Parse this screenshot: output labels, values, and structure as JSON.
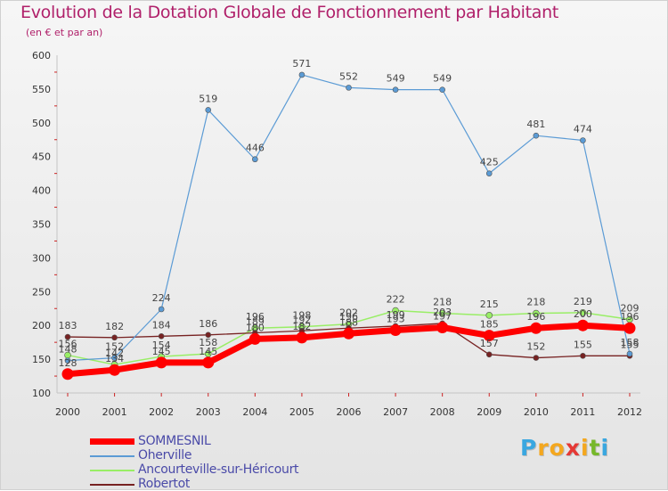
{
  "chart_data": {
    "type": "line",
    "title": "Evolution de la Dotation Globale de Fonctionnement par Habitant",
    "subtitle": "(en € et par an)",
    "x": [
      "2000",
      "2001",
      "2002",
      "2003",
      "2004",
      "2005",
      "2006",
      "2007",
      "2008",
      "2009",
      "2010",
      "2011",
      "2012"
    ],
    "ylim": [
      100,
      600
    ],
    "yticks": [
      100,
      150,
      200,
      250,
      300,
      350,
      400,
      450,
      500,
      550,
      600
    ],
    "grid": false,
    "legend_position": "bottom-left",
    "series": [
      {
        "name": "SOMMESNIL",
        "color": "#ff0000",
        "values": [
          128,
          134,
          145,
          145,
          180,
          182,
          188,
          193,
          197,
          185,
          196,
          200,
          196
        ],
        "labels": [
          128,
          134,
          145,
          145,
          180,
          182,
          188,
          193,
          197,
          185,
          196,
          200,
          196
        ]
      },
      {
        "name": "Oherville",
        "color": "#5b9bd5",
        "values": [
          148,
          152,
          224,
          519,
          446,
          571,
          552,
          549,
          549,
          425,
          481,
          474,
          158
        ],
        "labels": [
          148,
          152,
          224,
          519,
          446,
          571,
          552,
          549,
          549,
          425,
          481,
          474,
          158
        ]
      },
      {
        "name": "Ancourteville-sur-Héricourt",
        "color": "#99ee66",
        "values": [
          156,
          142,
          154,
          158,
          196,
          198,
          202,
          222,
          218,
          215,
          218,
          219,
          209
        ],
        "labels": [
          156,
          142,
          154,
          158,
          196,
          198,
          202,
          222,
          218,
          215,
          218,
          219,
          209
        ]
      },
      {
        "name": "Robertot",
        "color": "#772222",
        "values": [
          183,
          182,
          184,
          186,
          189,
          192,
          196,
          199,
          203,
          157,
          152,
          155,
          155
        ],
        "labels": [
          183,
          182,
          184,
          186,
          189,
          192,
          196,
          199,
          203,
          157,
          152,
          155,
          155
        ]
      }
    ]
  },
  "brand": {
    "letters": [
      "P",
      "r",
      "o",
      "x",
      "i",
      "t",
      "i"
    ],
    "colors": [
      "#3aa7e0",
      "#f4a71e",
      "#f4a71e",
      "#e53935",
      "#f4a71e",
      "#76b82a",
      "#3aa7e0"
    ]
  }
}
